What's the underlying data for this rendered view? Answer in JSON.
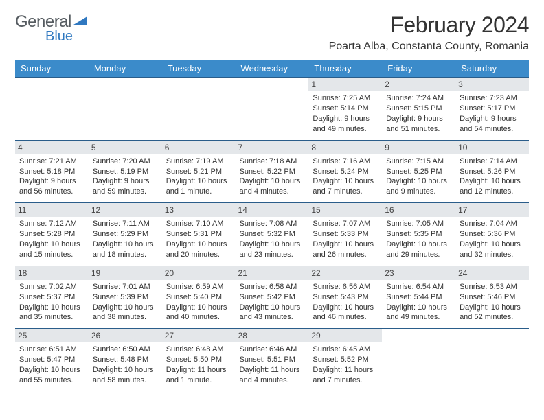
{
  "logo": {
    "text_a": "General",
    "text_b": "Blue"
  },
  "title": "February 2024",
  "location": "Poarta Alba, Constanta County, Romania",
  "colors": {
    "header_bg": "#3b8bca",
    "header_text": "#ffffff",
    "daynum_bg": "#e4e7ea",
    "row_border": "#2a5d8a",
    "logo_blue": "#2f78c0",
    "logo_gray": "#555b60",
    "body_text": "#333333"
  },
  "weekdays": [
    "Sunday",
    "Monday",
    "Tuesday",
    "Wednesday",
    "Thursday",
    "Friday",
    "Saturday"
  ],
  "weeks": [
    [
      null,
      null,
      null,
      null,
      {
        "n": "1",
        "sr": "7:25 AM",
        "ss": "5:14 PM",
        "dl": "9 hours and 49 minutes."
      },
      {
        "n": "2",
        "sr": "7:24 AM",
        "ss": "5:15 PM",
        "dl": "9 hours and 51 minutes."
      },
      {
        "n": "3",
        "sr": "7:23 AM",
        "ss": "5:17 PM",
        "dl": "9 hours and 54 minutes."
      }
    ],
    [
      {
        "n": "4",
        "sr": "7:21 AM",
        "ss": "5:18 PM",
        "dl": "9 hours and 56 minutes."
      },
      {
        "n": "5",
        "sr": "7:20 AM",
        "ss": "5:19 PM",
        "dl": "9 hours and 59 minutes."
      },
      {
        "n": "6",
        "sr": "7:19 AM",
        "ss": "5:21 PM",
        "dl": "10 hours and 1 minute."
      },
      {
        "n": "7",
        "sr": "7:18 AM",
        "ss": "5:22 PM",
        "dl": "10 hours and 4 minutes."
      },
      {
        "n": "8",
        "sr": "7:16 AM",
        "ss": "5:24 PM",
        "dl": "10 hours and 7 minutes."
      },
      {
        "n": "9",
        "sr": "7:15 AM",
        "ss": "5:25 PM",
        "dl": "10 hours and 9 minutes."
      },
      {
        "n": "10",
        "sr": "7:14 AM",
        "ss": "5:26 PM",
        "dl": "10 hours and 12 minutes."
      }
    ],
    [
      {
        "n": "11",
        "sr": "7:12 AM",
        "ss": "5:28 PM",
        "dl": "10 hours and 15 minutes."
      },
      {
        "n": "12",
        "sr": "7:11 AM",
        "ss": "5:29 PM",
        "dl": "10 hours and 18 minutes."
      },
      {
        "n": "13",
        "sr": "7:10 AM",
        "ss": "5:31 PM",
        "dl": "10 hours and 20 minutes."
      },
      {
        "n": "14",
        "sr": "7:08 AM",
        "ss": "5:32 PM",
        "dl": "10 hours and 23 minutes."
      },
      {
        "n": "15",
        "sr": "7:07 AM",
        "ss": "5:33 PM",
        "dl": "10 hours and 26 minutes."
      },
      {
        "n": "16",
        "sr": "7:05 AM",
        "ss": "5:35 PM",
        "dl": "10 hours and 29 minutes."
      },
      {
        "n": "17",
        "sr": "7:04 AM",
        "ss": "5:36 PM",
        "dl": "10 hours and 32 minutes."
      }
    ],
    [
      {
        "n": "18",
        "sr": "7:02 AM",
        "ss": "5:37 PM",
        "dl": "10 hours and 35 minutes."
      },
      {
        "n": "19",
        "sr": "7:01 AM",
        "ss": "5:39 PM",
        "dl": "10 hours and 38 minutes."
      },
      {
        "n": "20",
        "sr": "6:59 AM",
        "ss": "5:40 PM",
        "dl": "10 hours and 40 minutes."
      },
      {
        "n": "21",
        "sr": "6:58 AM",
        "ss": "5:42 PM",
        "dl": "10 hours and 43 minutes."
      },
      {
        "n": "22",
        "sr": "6:56 AM",
        "ss": "5:43 PM",
        "dl": "10 hours and 46 minutes."
      },
      {
        "n": "23",
        "sr": "6:54 AM",
        "ss": "5:44 PM",
        "dl": "10 hours and 49 minutes."
      },
      {
        "n": "24",
        "sr": "6:53 AM",
        "ss": "5:46 PM",
        "dl": "10 hours and 52 minutes."
      }
    ],
    [
      {
        "n": "25",
        "sr": "6:51 AM",
        "ss": "5:47 PM",
        "dl": "10 hours and 55 minutes."
      },
      {
        "n": "26",
        "sr": "6:50 AM",
        "ss": "5:48 PM",
        "dl": "10 hours and 58 minutes."
      },
      {
        "n": "27",
        "sr": "6:48 AM",
        "ss": "5:50 PM",
        "dl": "11 hours and 1 minute."
      },
      {
        "n": "28",
        "sr": "6:46 AM",
        "ss": "5:51 PM",
        "dl": "11 hours and 4 minutes."
      },
      {
        "n": "29",
        "sr": "6:45 AM",
        "ss": "5:52 PM",
        "dl": "11 hours and 7 minutes."
      },
      null,
      null
    ]
  ],
  "labels": {
    "sunrise": "Sunrise:",
    "sunset": "Sunset:",
    "daylight": "Daylight:"
  }
}
